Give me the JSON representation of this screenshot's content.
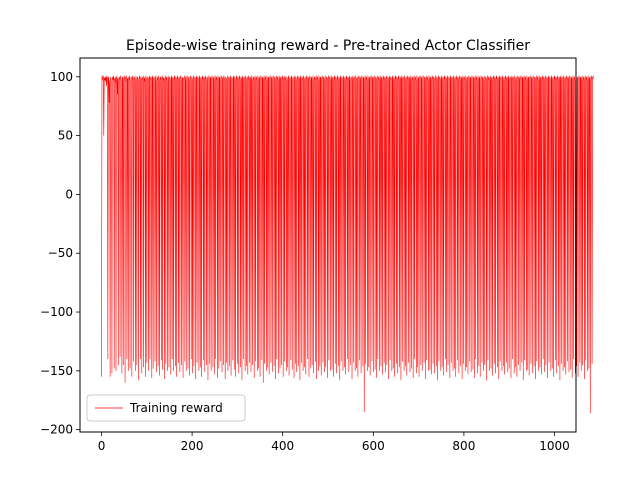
{
  "chart_data": {
    "type": "line",
    "title": "Episode-wise training reward - Pre-trained Actor Classifier",
    "xlabel": "",
    "ylabel": "",
    "xlim": [
      -47.5,
      1047.5
    ],
    "ylim": [
      -202,
      116
    ],
    "x_ticks": [
      0,
      200,
      400,
      600,
      800,
      1000
    ],
    "y_ticks": [
      -200,
      -150,
      -100,
      -50,
      0,
      50,
      100
    ],
    "grid": false,
    "legend_position": "lower-left",
    "series": [
      {
        "name": "Training reward",
        "color": "#ff0000",
        "x_start": 0,
        "x_step": 1,
        "values": [
          -155,
          101,
          99,
          97,
          101,
          50,
          99,
          97,
          100,
          96,
          100,
          92,
          101,
          98,
          -140,
          99,
          100,
          78,
          97,
          -155,
          100,
          98,
          95,
          -152,
          99,
          100,
          97,
          101,
          -148,
          99,
          95,
          100,
          -150,
          98,
          101,
          85,
          99,
          -145,
          97,
          100,
          99,
          -138,
          101,
          98,
          96,
          -152,
          100,
          99,
          -145,
          97,
          101,
          99,
          -160,
          100,
          96,
          101,
          -140,
          98,
          99,
          -150,
          100,
          97,
          101,
          -148,
          96,
          99,
          100,
          -155,
          98,
          101,
          97,
          -142,
          100,
          99,
          98,
          -150,
          101,
          97,
          -145,
          99,
          100,
          96,
          -158,
          98,
          101,
          99,
          -140,
          100,
          97,
          -152,
          99,
          98,
          101,
          -147,
          100,
          96,
          99,
          -155,
          101,
          98,
          -143,
          97,
          100,
          99,
          -150,
          98,
          101,
          -140,
          99,
          100,
          97,
          -156,
          101,
          99,
          -148,
          98,
          100,
          97,
          -142,
          99,
          101,
          -151,
          96,
          100,
          98,
          -146,
          101,
          99,
          -154,
          97,
          100,
          98,
          -141,
          99,
          101,
          -149,
          100,
          97,
          99,
          -157,
          98,
          101,
          -144,
          99,
          100,
          96,
          -150,
          101,
          98,
          -147,
          99,
          100,
          97,
          -153,
          98,
          101,
          -140,
          99,
          100,
          -150,
          97,
          101,
          98,
          -146,
          100,
          99,
          -155,
          98,
          101,
          97,
          -143,
          99,
          100,
          -151,
          98,
          101,
          99,
          -145,
          97,
          100,
          -156,
          99,
          98,
          101,
          -142,
          100,
          97,
          -150,
          99,
          101,
          98,
          -148,
          100,
          96,
          -154,
          99,
          101,
          97,
          -140,
          100,
          98,
          -152,
          99,
          101,
          -146,
          97,
          100,
          99,
          -157,
          98,
          101,
          -143,
          99,
          100,
          97,
          -150,
          101,
          98,
          -147,
          99,
          100,
          -155,
          97,
          101,
          98,
          -141,
          100,
          99,
          -151,
          98,
          101,
          96,
          -145,
          100,
          99,
          -158,
          97,
          101,
          98,
          -144,
          100,
          99,
          -150,
          98,
          101,
          97,
          -147,
          100,
          99,
          -153,
          98,
          101,
          -140,
          99,
          100,
          97,
          -156,
          101,
          98,
          -148,
          99,
          100,
          -142,
          97,
          101,
          99,
          -151,
          98,
          100,
          -145,
          101,
          99,
          97,
          -157,
          100,
          98,
          -143,
          99,
          101,
          -150,
          97,
          100,
          98,
          -146,
          101,
          99,
          -154,
          98,
          100,
          97,
          -141,
          99,
          101,
          -149,
          100,
          98,
          -155,
          97,
          101,
          99,
          -144,
          100,
          98,
          -152,
          99,
          101,
          97,
          -147,
          100,
          99,
          -158,
          98,
          101,
          -140,
          99,
          100,
          97,
          -150,
          101,
          98,
          -146,
          99,
          100,
          -153,
          97,
          101,
          98,
          -143,
          100,
          99,
          -151,
          98,
          101,
          -145,
          97,
          100,
          99,
          -156,
          98,
          101,
          -142,
          99,
          100,
          97,
          -150,
          101,
          98,
          -148,
          99,
          100,
          -155,
          97,
          101,
          98,
          -141,
          100,
          99,
          -160,
          98,
          101,
          -144,
          99,
          100,
          97,
          -150,
          101,
          98,
          -147,
          99,
          100,
          -153,
          97,
          101,
          99,
          -143,
          100,
          98,
          -151,
          99,
          101,
          97,
          -146,
          100,
          99,
          -157,
          98,
          101,
          -140,
          99,
          100,
          97,
          -152,
          101,
          98,
          -148,
          99,
          100,
          -145,
          97,
          101,
          99,
          -155,
          98,
          100,
          -142,
          101,
          99,
          97,
          -150,
          100,
          98,
          -147,
          99,
          101,
          -154,
          97,
          100,
          98,
          -141,
          101,
          99,
          -149,
          98,
          100,
          97,
          -156,
          99,
          101,
          -144,
          100,
          98,
          -151,
          97,
          101,
          99,
          -146,
          100,
          98,
          -158,
          99,
          101,
          -143,
          97,
          100,
          98,
          -150,
          101,
          99,
          -147,
          98,
          100,
          -153,
          97,
          101,
          99,
          -140,
          100,
          98,
          -155,
          99,
          101,
          97,
          -148,
          100,
          99,
          -145,
          98,
          101,
          -152,
          97,
          100,
          99,
          -142,
          98,
          101,
          -157,
          99,
          100,
          97,
          -150,
          101,
          98,
          -146,
          99,
          100,
          -154,
          97,
          101,
          98,
          -143,
          100,
          99,
          -151,
          98,
          101,
          -147,
          97,
          100,
          99,
          -156,
          98,
          101,
          -141,
          99,
          100,
          97,
          -150,
          101,
          98,
          -149,
          99,
          100,
          -155,
          97,
          101,
          99,
          -144,
          100,
          98,
          -152,
          99,
          101,
          97,
          -146,
          100,
          99,
          -158,
          98,
          101,
          -142,
          99,
          100,
          97,
          -150,
          101,
          98,
          -147,
          99,
          100,
          -153,
          97,
          101,
          98,
          -140,
          100,
          99,
          -151,
          98,
          101,
          -145,
          97,
          100,
          99,
          -157,
          98,
          101,
          -143,
          99,
          100,
          97,
          -150,
          101,
          98,
          -148,
          99,
          100,
          -155,
          97,
          101,
          99,
          -141,
          100,
          98,
          -152,
          99,
          101,
          97,
          -146,
          100,
          99,
          -185,
          98,
          101,
          -144,
          99,
          100,
          97,
          -150,
          101,
          98,
          -147,
          99,
          100,
          -154,
          97,
          101,
          99,
          -142,
          100,
          98,
          -151,
          99,
          101,
          97,
          -149,
          100,
          99,
          -156,
          98,
          101,
          -140,
          99,
          100,
          97,
          -150,
          101,
          98,
          -146,
          99,
          100,
          -153,
          97,
          101,
          98,
          -143,
          100,
          99,
          -151,
          98,
          101,
          -145,
          97,
          100,
          99,
          -157,
          98,
          101,
          -141,
          99,
          100,
          97,
          -150,
          101,
          98,
          -148,
          99,
          100,
          -155,
          97,
          101,
          99,
          -144,
          100,
          98,
          -152,
          99,
          101,
          97,
          -147,
          100,
          99,
          -158,
          98,
          101,
          -142,
          99,
          100,
          97,
          -150,
          101,
          98,
          -146,
          99,
          100,
          -154,
          97,
          101,
          98,
          -143,
          100,
          99,
          -151,
          98,
          101,
          -148,
          97,
          100,
          99,
          -156,
          98,
          101,
          -140,
          99,
          100,
          97,
          -152,
          101,
          98,
          -147,
          99,
          100,
          -155,
          97,
          101,
          99,
          -145,
          100,
          98,
          -150,
          99,
          101,
          97,
          -143,
          100,
          99,
          -157,
          98,
          101,
          -141,
          99,
          100,
          97,
          -150,
          101,
          98,
          -149,
          99,
          100,
          -153,
          97,
          101,
          99,
          -144,
          100,
          98,
          -152,
          99,
          101,
          97,
          -146,
          100,
          99,
          -158,
          98,
          101,
          -142,
          99,
          100,
          97,
          -150,
          101,
          98,
          -147,
          99,
          100,
          -154,
          97,
          101,
          98,
          -140,
          100,
          99,
          -151,
          98,
          101,
          -145,
          97,
          100,
          99,
          -156,
          98,
          101,
          -143,
          99,
          100,
          97,
          -150,
          101,
          98,
          -148,
          99,
          100,
          -155,
          97,
          101,
          99,
          -141,
          100,
          98,
          -152,
          99,
          101,
          97,
          -146,
          100,
          99,
          -157,
          98,
          101,
          -144,
          99,
          100,
          97,
          -150,
          101,
          98,
          -147,
          99,
          100,
          -153,
          97,
          101,
          99,
          -142,
          100,
          98,
          -151,
          99,
          101,
          97,
          -149,
          100,
          99,
          -156,
          98,
          101,
          -140,
          99,
          100,
          97,
          -152,
          101,
          98,
          -146,
          99,
          100,
          -155,
          97,
          101,
          98,
          -143,
          100,
          99,
          -150,
          98,
          101,
          -145,
          97,
          100,
          99,
          -158,
          98,
          101,
          -141,
          99,
          100,
          97,
          -150,
          101,
          98,
          -148,
          99,
          100,
          -154,
          97,
          101,
          99,
          -144,
          100,
          98,
          -152,
          99,
          101,
          97,
          -147,
          100,
          99,
          -157,
          98,
          101,
          -142,
          99,
          100,
          97,
          -150,
          101,
          98,
          -146,
          99,
          100,
          -153,
          97,
          101,
          98,
          -143,
          100,
          99,
          -151,
          98,
          101,
          -148,
          97,
          100,
          99,
          -156,
          98,
          101,
          -140,
          99,
          100,
          97,
          -152,
          101,
          98,
          -147,
          99,
          100,
          -155,
          97,
          101,
          99,
          -145,
          100,
          98,
          -150,
          99,
          101,
          97,
          -143,
          100,
          99,
          -158,
          98,
          101,
          -141,
          99,
          100,
          97,
          -150,
          101,
          98,
          -149,
          99,
          100,
          -154,
          97,
          101,
          99,
          -144,
          100,
          98,
          -152,
          99,
          101,
          97,
          -146,
          100,
          99,
          -157,
          98,
          101,
          -142,
          99,
          100,
          97,
          -150,
          101,
          98,
          -147,
          99,
          100,
          -153,
          97,
          101,
          98,
          -140,
          100,
          99,
          -151,
          98,
          101,
          -145,
          97,
          100,
          99,
          -156,
          98,
          101,
          -143,
          99,
          100,
          97,
          -150,
          101,
          98,
          -148,
          99,
          100,
          -155,
          97,
          101,
          99,
          -141,
          100,
          98,
          -152,
          99,
          101,
          97,
          -146,
          100,
          99,
          -158,
          98,
          101,
          -144,
          99,
          100,
          97,
          -150,
          101,
          98,
          -147,
          99,
          100,
          -153,
          97,
          101,
          99,
          -142,
          100,
          98,
          -151,
          99,
          101,
          97,
          -149,
          100,
          99,
          -156,
          98,
          101,
          -140,
          99,
          100,
          97,
          -152,
          101,
          98,
          -146,
          99,
          100,
          -155,
          97,
          101,
          98,
          -143,
          100,
          99,
          -150,
          98,
          101,
          -145,
          97,
          100,
          99,
          -157,
          98,
          101,
          -141,
          99,
          100,
          97,
          -150,
          101,
          98,
          -148,
          99,
          100,
          -186,
          97,
          101,
          99,
          -144,
          100,
          98,
          101
        ]
      }
    ]
  }
}
